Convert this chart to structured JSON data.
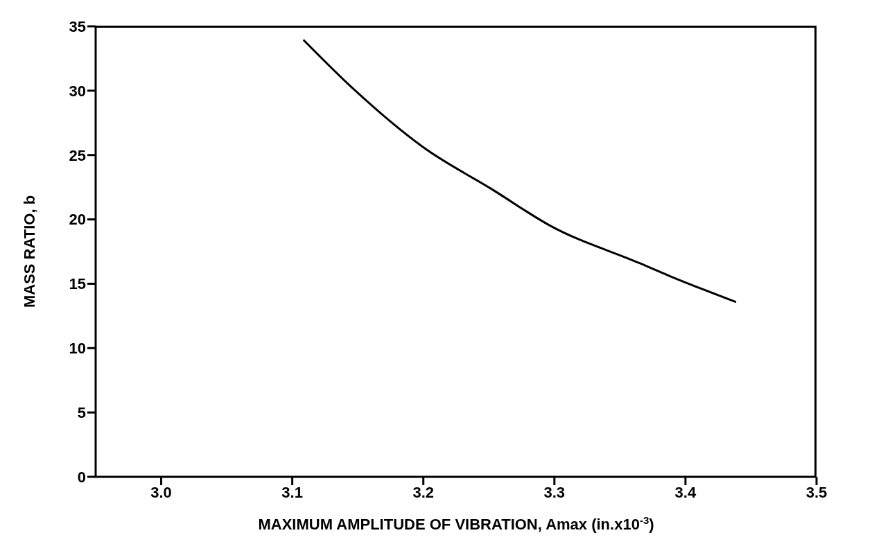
{
  "chart_data": {
    "type": "line",
    "xlabel": "MAXIMUM AMPLITUDE OF VIBRATION, Amax (in.x10$^{-3}$)",
    "ylabel": "MASS RATIO, b",
    "x": [
      3.109,
      3.146,
      3.2,
      3.253,
      3.297,
      3.365,
      3.388,
      3.438
    ],
    "series": [
      {
        "color": "#000000",
        "values": [
          33.9,
          30.2,
          25.6,
          22.3,
          19.5,
          16.6,
          15.6,
          13.6
        ]
      }
    ],
    "xlim": [
      2.95,
      3.5
    ],
    "xticks": [
      {
        "value": 3,
        "label": "3.0"
      },
      3.1,
      3.2,
      3.3,
      3.4,
      3.5
    ],
    "ylim": [
      0,
      35
    ],
    "yticks": [
      0,
      5,
      10,
      15,
      20,
      25,
      30,
      35
    ],
    "marker": "none",
    "line_style": "solid"
  }
}
